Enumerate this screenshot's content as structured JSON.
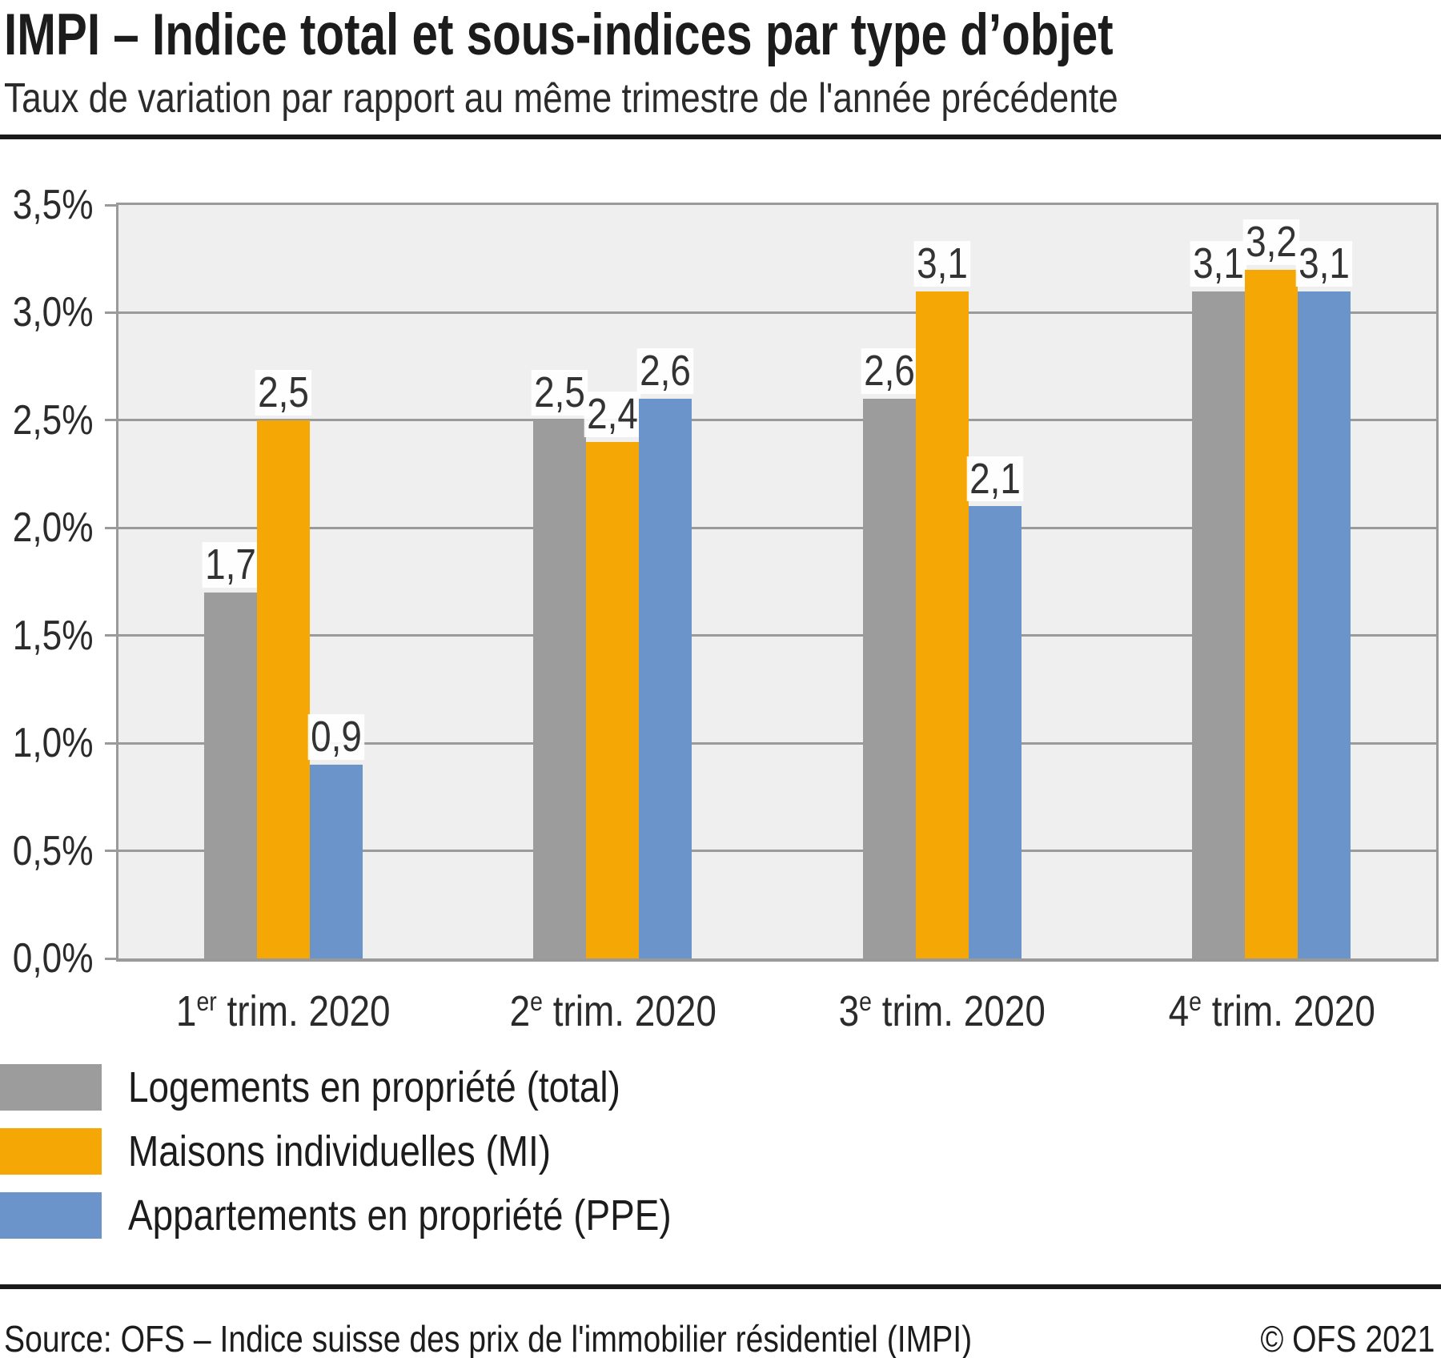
{
  "header": {
    "title": "IMPI – Indice total et sous-indices par type d’objet",
    "subtitle": "Taux de variation par rapport au même trimestre de l'année précédente"
  },
  "chart_data": {
    "type": "bar",
    "title": "IMPI – Indice total et sous-indices par type d’objet",
    "subtitle": "Taux de variation par rapport au même trimestre de l'année précédente",
    "categories": [
      "1er trim. 2020",
      "2e trim. 2020",
      "3e trim. 2020",
      "4e trim. 2020"
    ],
    "categories_display": [
      {
        "pre": "1",
        "sup": "er",
        "post": " trim. 2020"
      },
      {
        "pre": "2",
        "sup": "e",
        "post": " trim. 2020"
      },
      {
        "pre": "3",
        "sup": "e",
        "post": " trim. 2020"
      },
      {
        "pre": "4",
        "sup": "e",
        "post": " trim. 2020"
      }
    ],
    "series": [
      {
        "name": "Logements en propriété (total)",
        "color": "#9c9c9c",
        "values": [
          1.7,
          2.5,
          2.6,
          3.1
        ]
      },
      {
        "name": "Maisons individuelles (MI)",
        "color": "#f5a706",
        "values": [
          2.5,
          2.4,
          3.1,
          3.2
        ]
      },
      {
        "name": "Appartements en propriété (PPE)",
        "color": "#6b94cb",
        "values": [
          0.9,
          2.6,
          2.1,
          3.1
        ]
      }
    ],
    "xlabel": "",
    "ylabel": "",
    "ylim": [
      0,
      3.5
    ],
    "ytick_step": 0.5,
    "yticks": [
      "0,0%",
      "0,5%",
      "1,0%",
      "1,5%",
      "2,0%",
      "2,5%",
      "3,0%",
      "3,5%"
    ],
    "grid": true,
    "legend_position": "bottom-left",
    "plot_bg": "#efefef",
    "gridline_color": "#9a9a9a",
    "value_decimal_separator": ","
  },
  "footer": {
    "source": "Source: OFS – Indice suisse des prix de l'immobilier résidentiel (IMPI)",
    "copyright": "© OFS 2021"
  }
}
